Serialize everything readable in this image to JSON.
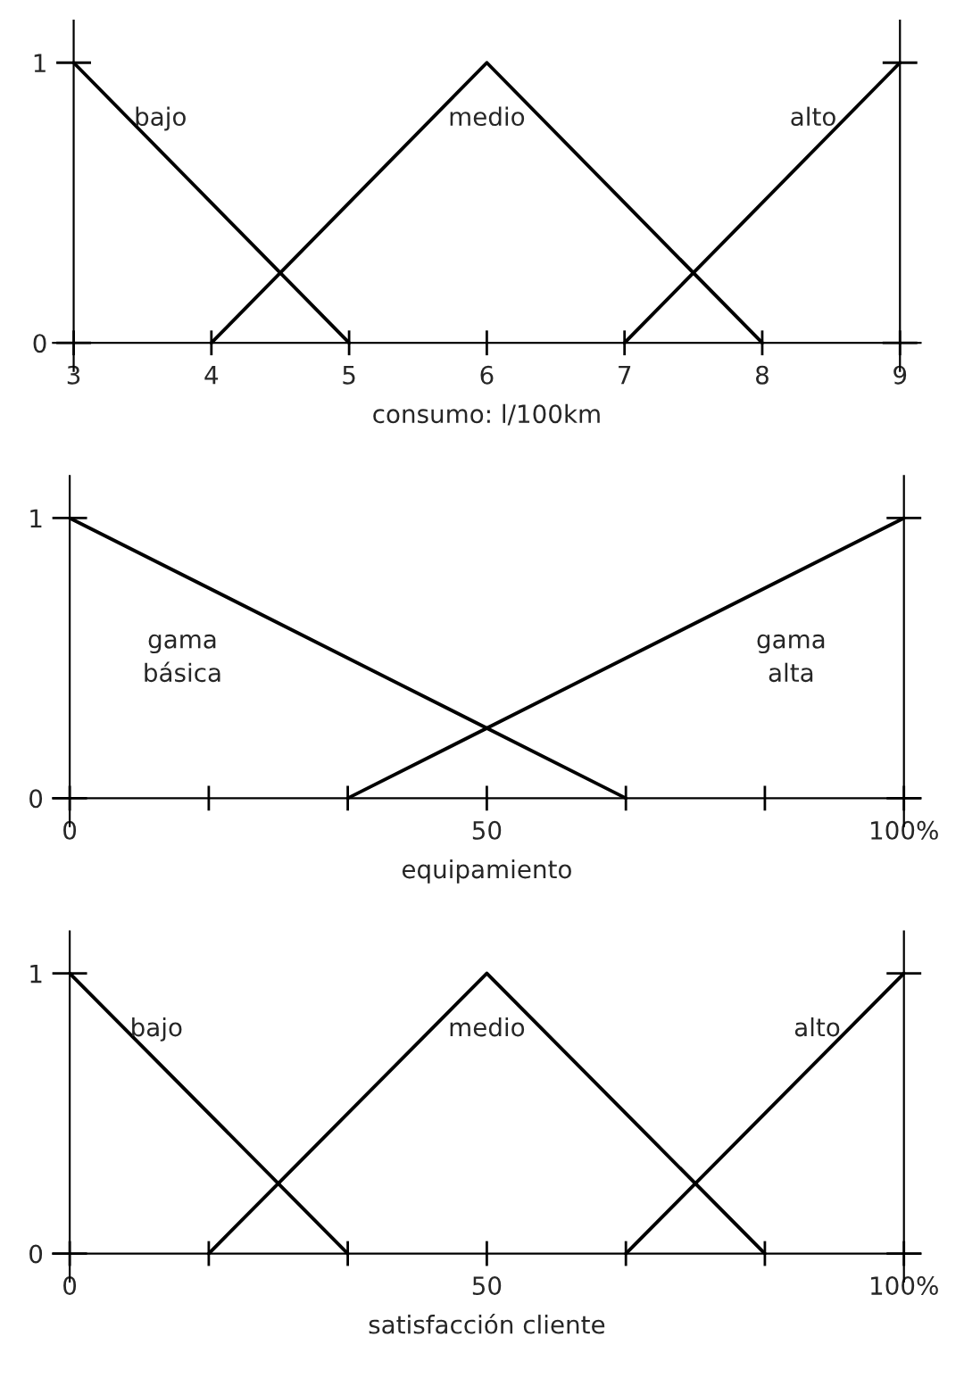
{
  "chart_data": [
    {
      "type": "line",
      "xlabel": "consumo: l/100km",
      "xlim": [
        2.85,
        9.15
      ],
      "ylim": [
        -0.1,
        1.15
      ],
      "xticks": [
        3,
        4,
        5,
        6,
        7,
        8,
        9
      ],
      "yticks": [
        0,
        1
      ],
      "series": [
        {
          "name": "bajo",
          "color": "#000000",
          "x": [
            3,
            5
          ],
          "values": [
            1,
            0
          ]
        },
        {
          "name": "medio",
          "color": "#000000",
          "x": [
            4,
            6,
            8
          ],
          "values": [
            0,
            1,
            0
          ]
        },
        {
          "name": "alto",
          "color": "#000000",
          "x": [
            7,
            9
          ],
          "values": [
            0,
            1
          ]
        }
      ]
    },
    {
      "type": "line",
      "xlabel": "equipamiento",
      "xlim": [
        -2,
        102
      ],
      "ylim": [
        -0.1,
        1.15
      ],
      "xticks": [
        0,
        {
          "value": 16.67,
          "label": null
        },
        {
          "value": 33.33,
          "label": null
        },
        50,
        {
          "value": 66.67,
          "label": null
        },
        {
          "value": 83.33,
          "label": null
        },
        {
          "value": 100,
          "label": "100%"
        }
      ],
      "yticks": [
        0,
        1
      ],
      "series": [
        {
          "name": "gama\nbásica",
          "color": "#000000",
          "x": [
            0,
            66.67
          ],
          "values": [
            1,
            0
          ]
        },
        {
          "name": "gama\nalta",
          "color": "#000000",
          "x": [
            33.33,
            100
          ],
          "values": [
            0,
            1
          ]
        }
      ]
    },
    {
      "type": "line",
      "xlabel": "satisfacción cliente",
      "xlim": [
        -2,
        102
      ],
      "ylim": [
        -0.1,
        1.15
      ],
      "xticks": [
        0,
        {
          "value": 16.67,
          "label": null
        },
        {
          "value": 33.33,
          "label": null
        },
        50,
        {
          "value": 66.67,
          "label": null
        },
        {
          "value": 83.33,
          "label": null
        },
        {
          "value": 100,
          "label": "100%"
        }
      ],
      "yticks": [
        0,
        1
      ],
      "series": [
        {
          "name": "bajo",
          "color": "#000000",
          "x": [
            0,
            33.33
          ],
          "values": [
            1,
            0
          ]
        },
        {
          "name": "medio",
          "color": "#000000",
          "x": [
            16.67,
            50,
            83.33
          ],
          "values": [
            0,
            1,
            0
          ]
        },
        {
          "name": "alto",
          "color": "#000000",
          "x": [
            66.67,
            100
          ],
          "values": [
            0,
            1
          ]
        }
      ]
    }
  ]
}
